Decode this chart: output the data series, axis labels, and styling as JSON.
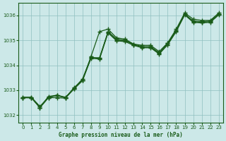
{
  "title": "Graphe pression niveau de la mer (hPa)",
  "background_color": "#cce8e8",
  "grid_color": "#8fbfbf",
  "line_color": "#1a5c1a",
  "xlim": [
    -0.5,
    23.5
  ],
  "ylim": [
    1031.7,
    1036.5
  ],
  "yticks": [
    1032,
    1033,
    1034,
    1035,
    1036
  ],
  "xticks": [
    0,
    1,
    2,
    3,
    4,
    5,
    6,
    7,
    8,
    9,
    10,
    11,
    12,
    13,
    14,
    15,
    16,
    17,
    18,
    19,
    20,
    21,
    22,
    23
  ],
  "series": [
    [
      1032.7,
      1032.7,
      1032.3,
      1032.7,
      1032.8,
      1032.7,
      1033.1,
      1033.4,
      1034.35,
      1035.35,
      1035.45,
      1035.1,
      1035.05,
      1034.85,
      1034.8,
      1034.8,
      1034.55,
      1034.9,
      1035.45,
      1036.1,
      1035.85,
      1035.8,
      1035.8,
      1036.1
    ],
    [
      1032.7,
      1032.7,
      1032.3,
      1032.75,
      1032.8,
      1032.72,
      1033.05,
      1033.4,
      1034.3,
      1034.3,
      1035.35,
      1035.05,
      1035.0,
      1034.85,
      1034.75,
      1034.75,
      1034.5,
      1034.88,
      1035.4,
      1036.05,
      1035.78,
      1035.75,
      1035.78,
      1036.05
    ],
    [
      1032.72,
      1032.72,
      1032.35,
      1032.72,
      1032.78,
      1032.7,
      1033.08,
      1033.45,
      1034.32,
      1034.28,
      1035.32,
      1035.0,
      1035.0,
      1034.82,
      1034.72,
      1034.72,
      1034.48,
      1034.85,
      1035.38,
      1036.05,
      1035.75,
      1035.72,
      1035.75,
      1036.05
    ],
    [
      1032.7,
      1032.7,
      1032.3,
      1032.7,
      1032.7,
      1032.68,
      1033.05,
      1033.38,
      1034.28,
      1034.25,
      1035.3,
      1034.98,
      1034.95,
      1034.8,
      1034.7,
      1034.7,
      1034.45,
      1034.82,
      1035.35,
      1036.02,
      1035.72,
      1035.7,
      1035.72,
      1036.02
    ]
  ],
  "marker": "+",
  "markersize": 4,
  "linewidth": 0.9
}
